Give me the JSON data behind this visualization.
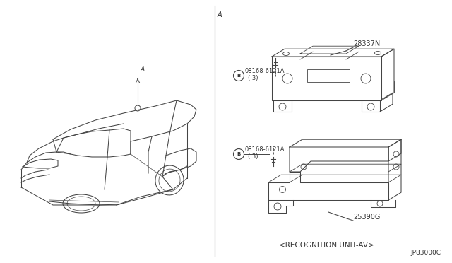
{
  "bg_color": "#ffffff",
  "line_color": "#444444",
  "text_color": "#333333",
  "fig_width": 6.4,
  "fig_height": 3.72,
  "dpi": 100,
  "section_a_label": "A",
  "part_label_28337N": "28337N",
  "part_label_25390G": "25390G",
  "bolt_label_1": "08168-6121A",
  "bolt_sub_1": "( 3)",
  "bolt_label_2": "08168-6121A",
  "bolt_sub_2": "( 3)",
  "caption": "<RECOGNITION UNIT-AV>",
  "diagram_id": "JP83000C"
}
